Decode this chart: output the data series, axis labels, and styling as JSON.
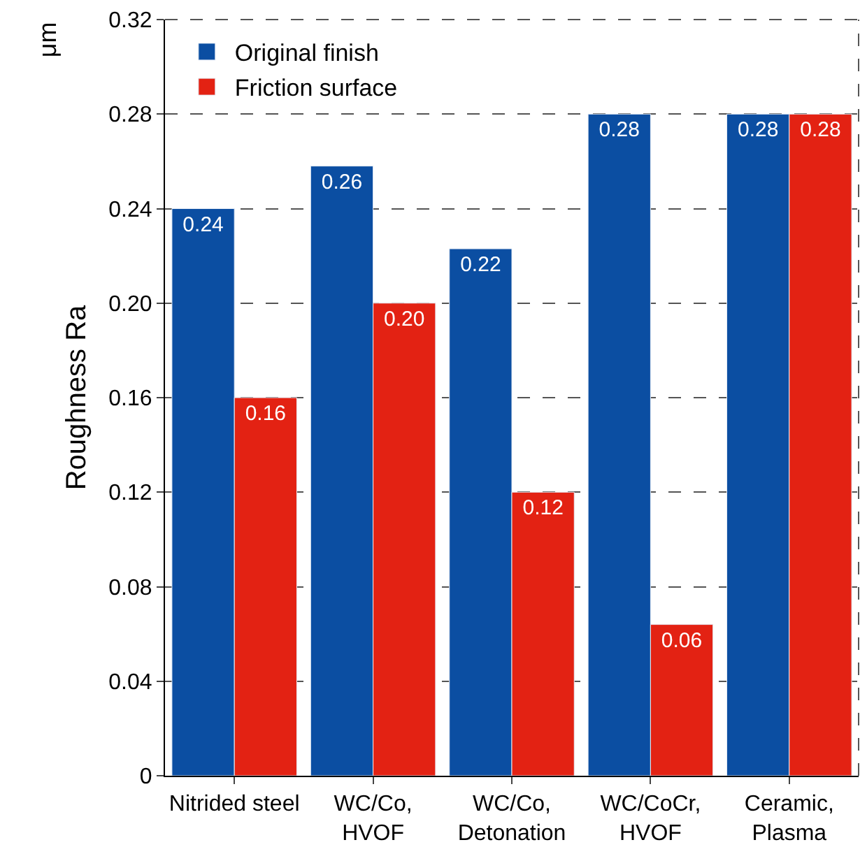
{
  "chart_data": {
    "type": "bar",
    "ylabel": "Roughness Ra",
    "annotations": [
      "μm"
    ],
    "categories": [
      "Nitrided steel",
      "WC/Co,\nHVOF",
      "WC/Co,\nDetonation",
      "WC/CoCr,\nHVOF",
      "Ceramic,\nPlasma"
    ],
    "series": [
      {
        "name": "Original finish",
        "color": "#0b4ea2",
        "values": [
          0.24,
          0.258,
          0.223,
          0.28,
          0.28
        ],
        "value_labels": [
          "0.24",
          "0.26",
          "0.22",
          "0.28",
          "0.28"
        ]
      },
      {
        "name": "Friction surface",
        "color": "#e32213",
        "values": [
          0.16,
          0.2,
          0.12,
          0.064,
          0.28
        ],
        "value_labels": [
          "0.16",
          "0.20",
          "0.12",
          "0.06",
          "0.28"
        ]
      }
    ],
    "ylim": [
      0,
      0.32
    ],
    "yticks": [
      {
        "value": 0,
        "label": "0"
      },
      0.04,
      0.08,
      0.12,
      0.16,
      {
        "value": 0.2,
        "label": "0.20"
      },
      0.24,
      0.28,
      0.32
    ],
    "grid": "y",
    "legend": "top left"
  }
}
